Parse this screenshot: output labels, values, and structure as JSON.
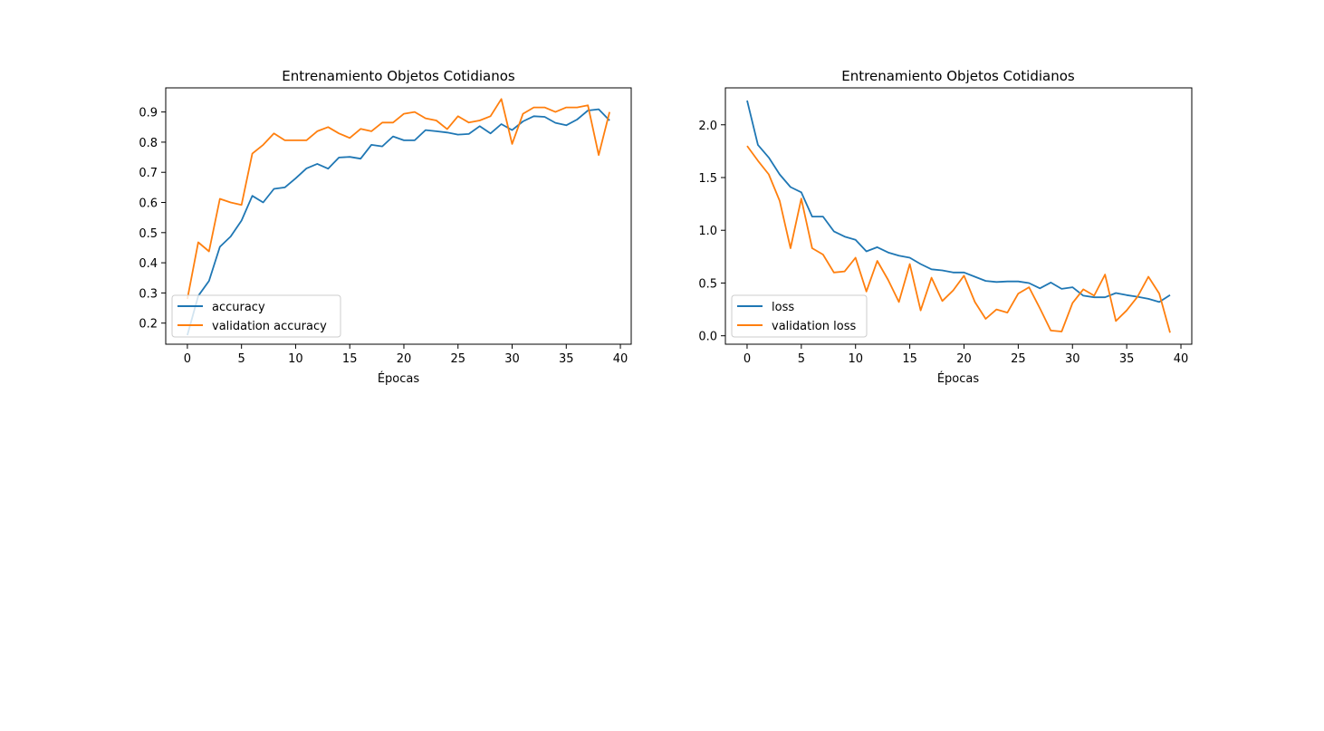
{
  "colors": {
    "series_blue": "#1f77b4",
    "series_orange": "#ff7f0e",
    "axis": "#000000",
    "legend_border": "#cccccc"
  },
  "chart_data": [
    {
      "type": "line",
      "title": "Entrenamiento Objetos Cotidianos",
      "xlabel": "Épocas",
      "ylabel": "",
      "xlim": [
        -2,
        41
      ],
      "ylim": [
        0.13,
        0.98
      ],
      "xticks": [
        0,
        5,
        10,
        15,
        20,
        25,
        30,
        35,
        40
      ],
      "yticks": [
        0.2,
        0.3,
        0.4,
        0.5,
        0.6,
        0.7,
        0.8,
        0.9
      ],
      "grid": false,
      "legend_position": "lower-left",
      "x": [
        0,
        1,
        2,
        3,
        4,
        5,
        6,
        7,
        8,
        9,
        10,
        11,
        12,
        13,
        14,
        15,
        16,
        17,
        18,
        19,
        20,
        21,
        22,
        23,
        24,
        25,
        26,
        27,
        28,
        29,
        30,
        31,
        32,
        33,
        34,
        35,
        36,
        37,
        38,
        39
      ],
      "series": [
        {
          "name": "accuracy",
          "color": "series_blue",
          "values": [
            0.16,
            0.29,
            0.34,
            0.453,
            0.487,
            0.54,
            0.622,
            0.6,
            0.645,
            0.65,
            0.68,
            0.713,
            0.728,
            0.712,
            0.749,
            0.751,
            0.745,
            0.791,
            0.786,
            0.819,
            0.806,
            0.806,
            0.84,
            0.836,
            0.832,
            0.825,
            0.827,
            0.853,
            0.829,
            0.86,
            0.84,
            0.869,
            0.886,
            0.884,
            0.864,
            0.856,
            0.875,
            0.905,
            0.909,
            0.872
          ]
        },
        {
          "name": "validation accuracy",
          "color": "series_orange",
          "values": [
            0.28,
            0.468,
            0.438,
            0.612,
            0.6,
            0.592,
            0.762,
            0.791,
            0.829,
            0.806,
            0.806,
            0.806,
            0.836,
            0.85,
            0.829,
            0.814,
            0.844,
            0.836,
            0.865,
            0.865,
            0.894,
            0.9,
            0.879,
            0.872,
            0.843,
            0.886,
            0.865,
            0.872,
            0.886,
            0.943,
            0.794,
            0.894,
            0.915,
            0.915,
            0.9,
            0.915,
            0.915,
            0.922,
            0.757,
            0.9
          ]
        }
      ]
    },
    {
      "type": "line",
      "title": "Entrenamiento Objetos Cotidianos",
      "xlabel": "Épocas",
      "ylabel": "",
      "xlim": [
        -2,
        41
      ],
      "ylim": [
        -0.08,
        2.35
      ],
      "xticks": [
        0,
        5,
        10,
        15,
        20,
        25,
        30,
        35,
        40
      ],
      "yticks": [
        0.0,
        0.5,
        1.0,
        1.5,
        2.0
      ],
      "ytick_labels": [
        "0.0",
        "0.5",
        "1.0",
        "1.5",
        "2.0"
      ],
      "grid": false,
      "legend_position": "lower-left",
      "x": [
        0,
        1,
        2,
        3,
        4,
        5,
        6,
        7,
        8,
        9,
        10,
        11,
        12,
        13,
        14,
        15,
        16,
        17,
        18,
        19,
        20,
        21,
        22,
        23,
        24,
        25,
        26,
        27,
        28,
        29,
        30,
        31,
        32,
        33,
        34,
        35,
        36,
        37,
        38,
        39
      ],
      "series": [
        {
          "name": "loss",
          "color": "series_blue",
          "values": [
            2.23,
            1.81,
            1.69,
            1.53,
            1.41,
            1.36,
            1.13,
            1.13,
            0.99,
            0.94,
            0.91,
            0.8,
            0.84,
            0.79,
            0.76,
            0.74,
            0.68,
            0.63,
            0.62,
            0.6,
            0.6,
            0.56,
            0.52,
            0.51,
            0.515,
            0.515,
            0.5,
            0.45,
            0.505,
            0.445,
            0.46,
            0.38,
            0.365,
            0.365,
            0.405,
            0.385,
            0.37,
            0.35,
            0.32,
            0.385
          ]
        },
        {
          "name": "validation loss",
          "color": "series_orange",
          "values": [
            1.8,
            1.66,
            1.53,
            1.28,
            0.83,
            1.3,
            0.83,
            0.77,
            0.6,
            0.61,
            0.74,
            0.42,
            0.71,
            0.53,
            0.32,
            0.68,
            0.24,
            0.55,
            0.33,
            0.43,
            0.57,
            0.32,
            0.16,
            0.25,
            0.22,
            0.4,
            0.46,
            0.26,
            0.05,
            0.04,
            0.31,
            0.44,
            0.38,
            0.58,
            0.14,
            0.24,
            0.37,
            0.56,
            0.4,
            0.03
          ]
        }
      ]
    }
  ]
}
